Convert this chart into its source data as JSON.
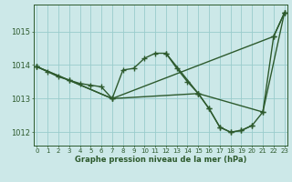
{
  "title": "Graphe pression niveau de la mer (hPa)",
  "ylim": [
    1011.6,
    1015.8
  ],
  "yticks": [
    1012,
    1013,
    1014,
    1015
  ],
  "xlim": [
    -0.3,
    23.3
  ],
  "xlabel_ticks": [
    0,
    1,
    2,
    3,
    4,
    5,
    6,
    7,
    8,
    9,
    10,
    11,
    12,
    13,
    14,
    15,
    16,
    17,
    18,
    19,
    20,
    21,
    22,
    23
  ],
  "bg_color": "#cce8e8",
  "line_color": "#2d5a2d",
  "grid_color": "#99cccc",
  "segments": [
    {
      "x": [
        0,
        1,
        2,
        3,
        4,
        5,
        6,
        7,
        8,
        9,
        10,
        11,
        12,
        13,
        14,
        15,
        16,
        17,
        18,
        19,
        20,
        21,
        22,
        23
      ],
      "y": [
        1013.95,
        1013.8,
        1013.65,
        1013.55,
        1013.45,
        1013.4,
        1013.35,
        1013.0,
        1013.85,
        1013.9,
        1014.2,
        1014.35,
        1014.35,
        1013.9,
        1013.5,
        1013.15,
        1012.7,
        1012.15,
        1012.0,
        1012.05,
        1012.2,
        1012.6,
        1014.85,
        1015.55
      ]
    },
    {
      "x": [
        0,
        7,
        22,
        23
      ],
      "y": [
        1013.95,
        1013.0,
        1014.85,
        1015.55
      ]
    },
    {
      "x": [
        0,
        3,
        7,
        15,
        21,
        23
      ],
      "y": [
        1013.95,
        1013.55,
        1013.0,
        1013.15,
        1012.6,
        1015.55
      ]
    },
    {
      "x": [
        12,
        15,
        16,
        17,
        18,
        19,
        20
      ],
      "y": [
        1014.35,
        1013.15,
        1012.7,
        1012.15,
        1012.0,
        1012.05,
        1012.2
      ]
    }
  ],
  "marker": "+",
  "markersize": 4,
  "markeredgewidth": 1.0,
  "linewidth": 1.0
}
